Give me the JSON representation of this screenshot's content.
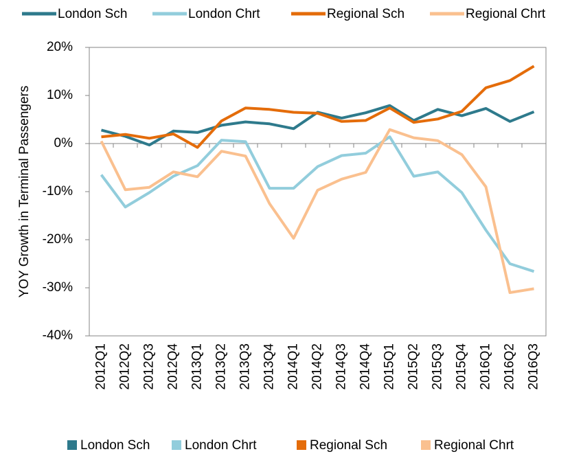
{
  "chart_data": {
    "type": "line",
    "y_label": "YOY Growth in Terminal Passengers",
    "categories": [
      "2012Q1",
      "2012Q2",
      "2012Q3",
      "2012Q4",
      "2013Q1",
      "2013Q2",
      "2013Q3",
      "2013Q4",
      "2014Q1",
      "2014Q2",
      "2014Q3",
      "2014Q4",
      "2015Q1",
      "2015Q2",
      "2015Q3",
      "2015Q4",
      "2016Q1",
      "2016Q2",
      "2016Q3"
    ],
    "series": [
      {
        "name": "London Sch",
        "color": "#2e7a8c",
        "values": [
          2.8,
          1.5,
          -0.3,
          2.6,
          2.3,
          3.8,
          4.5,
          4.1,
          3.1,
          6.5,
          5.3,
          6.4,
          7.9,
          4.8,
          7.1,
          5.8,
          7.3,
          4.6,
          6.6
        ]
      },
      {
        "name": "London Chrt",
        "color": "#92cddc",
        "values": [
          -6.5,
          -13.2,
          -10.2,
          -6.8,
          -4.6,
          0.7,
          0.4,
          -9.3,
          -9.3,
          -4.8,
          -2.5,
          -2.0,
          1.4,
          -6.8,
          -5.9,
          -10.2,
          -18.0,
          -25.0,
          -26.6
        ]
      },
      {
        "name": "Regional Sch",
        "color": "#e46c0a",
        "values": [
          1.4,
          1.9,
          1.1,
          2.0,
          -0.8,
          4.7,
          7.4,
          7.1,
          6.5,
          6.3,
          4.6,
          4.8,
          7.4,
          4.4,
          5.1,
          6.7,
          11.6,
          13.1,
          16.1
        ]
      },
      {
        "name": "Regional Chrt",
        "color": "#fac08f",
        "values": [
          0.5,
          -9.6,
          -9.1,
          -5.9,
          -6.9,
          -1.6,
          -2.6,
          -12.5,
          -19.7,
          -9.7,
          -7.4,
          -6.0,
          2.9,
          1.2,
          0.6,
          -2.3,
          -9.0,
          -31.0,
          -30.2
        ]
      }
    ],
    "ylim": [
      -40,
      20
    ],
    "yticks": [
      {
        "value": -40,
        "label": "-40%"
      },
      {
        "value": -30,
        "label": "-30%"
      },
      {
        "value": -20,
        "label": "-20%"
      },
      {
        "value": -10,
        "label": "-10%"
      },
      {
        "value": 0,
        "label": "0%"
      },
      {
        "value": 10,
        "label": "10%"
      },
      {
        "value": 20,
        "label": "20%"
      }
    ],
    "grid": false
  }
}
